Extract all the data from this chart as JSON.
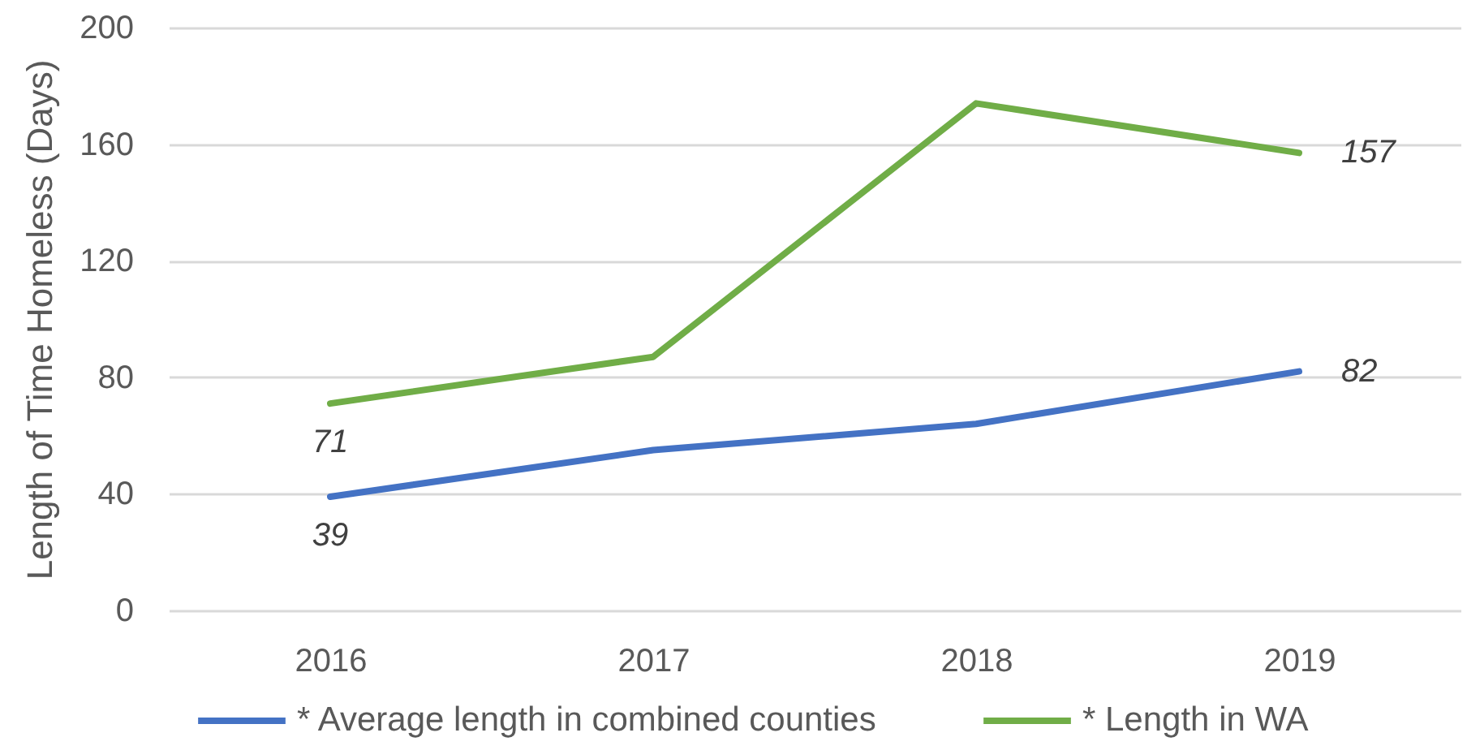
{
  "chart_data": {
    "type": "line",
    "ylabel": "Length of Time Homeless (Days)",
    "categories": [
      "2016",
      "2017",
      "2018",
      "2019"
    ],
    "series": [
      {
        "name": "* Average length in combined counties",
        "color": "#4472c4",
        "values": [
          39,
          55,
          64,
          82
        ],
        "value_labels": [
          "39",
          null,
          null,
          "82"
        ]
      },
      {
        "name": "* Length in WA",
        "color": "#70ad47",
        "values": [
          71,
          87,
          174,
          157
        ],
        "value_labels": [
          "71",
          null,
          null,
          "157"
        ]
      }
    ],
    "ylim": [
      0,
      200
    ],
    "yticks": [
      0,
      40,
      80,
      120,
      160,
      200
    ],
    "grid": "y",
    "legend": "bottom",
    "marker": "none",
    "line_style": "solid"
  }
}
